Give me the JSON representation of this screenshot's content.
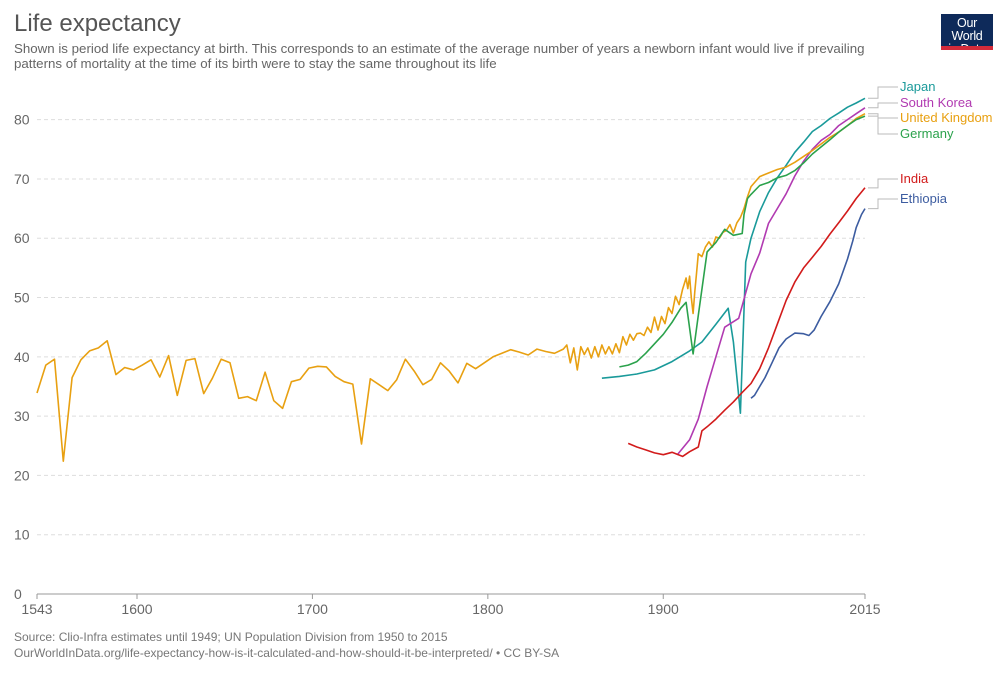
{
  "header": {
    "title": "Life expectancy",
    "subtitle": "Shown is period life expectancy at birth. This corresponds to an estimate of the average number of years a newborn infant would live if prevailing patterns of mortality at the time of its birth were to stay the same throughout its life"
  },
  "logo": {
    "line1": "Our World",
    "line2": "in Data"
  },
  "footer": {
    "source": "Source: Clio-Infra estimates until 1949; UN Population Division from 1950 to 2015",
    "url": "OurWorldInData.org/life-expectancy-how-is-it-calculated-and-how-should-it-be-interpreted/ • CC BY-SA"
  },
  "chart_data": {
    "type": "line",
    "title": "Life expectancy",
    "xlim": [
      1543,
      2015
    ],
    "ylim": [
      0,
      85
    ],
    "x_ticks": [
      1543,
      1600,
      1700,
      1800,
      1900,
      2015
    ],
    "y_ticks": [
      0,
      10,
      20,
      30,
      40,
      50,
      60,
      70,
      80
    ],
    "grid": "horizontal dashed",
    "legend": "right, end-of-line labels",
    "series": [
      {
        "name": "Japan",
        "color": "#1a9a9a",
        "label_value": 84.5,
        "points": [
          [
            1865,
            36.4
          ],
          [
            1875,
            36.7
          ],
          [
            1885,
            37.1
          ],
          [
            1895,
            37.8
          ],
          [
            1905,
            39.2
          ],
          [
            1915,
            41
          ],
          [
            1922,
            42.5
          ],
          [
            1930,
            45.5
          ],
          [
            1937,
            48.2
          ],
          [
            1940,
            42.5
          ],
          [
            1944,
            30.5
          ],
          [
            1947,
            56
          ],
          [
            1950,
            60
          ],
          [
            1955,
            64.5
          ],
          [
            1960,
            67.7
          ],
          [
            1965,
            70.2
          ],
          [
            1970,
            72.3
          ],
          [
            1975,
            74.5
          ],
          [
            1980,
            76.2
          ],
          [
            1985,
            78
          ],
          [
            1990,
            79
          ],
          [
            1995,
            80.2
          ],
          [
            2000,
            81.1
          ],
          [
            2005,
            82.1
          ],
          [
            2010,
            82.8
          ],
          [
            2015,
            83.6
          ]
        ]
      },
      {
        "name": "South Korea",
        "color": "#b13ab1",
        "label_value": 82,
        "points": [
          [
            1908,
            23.5
          ],
          [
            1915,
            26
          ],
          [
            1920,
            29.5
          ],
          [
            1925,
            35
          ],
          [
            1930,
            40
          ],
          [
            1935,
            45
          ],
          [
            1943,
            46.5
          ],
          [
            1950,
            54
          ],
          [
            1955,
            57.5
          ],
          [
            1960,
            62.5
          ],
          [
            1965,
            65
          ],
          [
            1970,
            67.5
          ],
          [
            1975,
            70.5
          ],
          [
            1980,
            73
          ],
          [
            1985,
            75
          ],
          [
            1990,
            76.5
          ],
          [
            1995,
            77.5
          ],
          [
            2000,
            79
          ],
          [
            2005,
            80
          ],
          [
            2010,
            81
          ],
          [
            2015,
            82
          ]
        ]
      },
      {
        "name": "United Kingdom",
        "color": "#e8a011",
        "label_value": 80.5,
        "points": [
          [
            1543,
            33.9
          ],
          [
            1548,
            38.6
          ],
          [
            1553,
            39.6
          ],
          [
            1558,
            22.4
          ],
          [
            1563,
            36.5
          ],
          [
            1568,
            39.5
          ],
          [
            1573,
            41
          ],
          [
            1578,
            41.5
          ],
          [
            1583,
            42.7
          ],
          [
            1588,
            37
          ],
          [
            1593,
            38.2
          ],
          [
            1598,
            37.8
          ],
          [
            1603,
            38.6
          ],
          [
            1608,
            39.5
          ],
          [
            1613,
            36.6
          ],
          [
            1618,
            40.2
          ],
          [
            1623,
            33.5
          ],
          [
            1628,
            39.4
          ],
          [
            1633,
            39.7
          ],
          [
            1638,
            33.8
          ],
          [
            1643,
            36.4
          ],
          [
            1648,
            39.6
          ],
          [
            1653,
            39
          ],
          [
            1658,
            33
          ],
          [
            1663,
            33.3
          ],
          [
            1668,
            32.6
          ],
          [
            1673,
            37.4
          ],
          [
            1678,
            32.6
          ],
          [
            1683,
            31.3
          ],
          [
            1688,
            35.8
          ],
          [
            1693,
            36.2
          ],
          [
            1698,
            38.1
          ],
          [
            1703,
            38.4
          ],
          [
            1708,
            38.3
          ],
          [
            1713,
            36.7
          ],
          [
            1718,
            35.8
          ],
          [
            1723,
            35.4
          ],
          [
            1728,
            25.3
          ],
          [
            1733,
            36.3
          ],
          [
            1738,
            35.3
          ],
          [
            1743,
            34.3
          ],
          [
            1748,
            36.1
          ],
          [
            1753,
            39.6
          ],
          [
            1758,
            37.6
          ],
          [
            1763,
            35.3
          ],
          [
            1768,
            36.2
          ],
          [
            1773,
            39
          ],
          [
            1778,
            37.6
          ],
          [
            1783,
            35.6
          ],
          [
            1788,
            38.9
          ],
          [
            1793,
            38
          ],
          [
            1798,
            39
          ],
          [
            1803,
            40
          ],
          [
            1808,
            40.6
          ],
          [
            1813,
            41.2
          ],
          [
            1818,
            40.8
          ],
          [
            1823,
            40.3
          ],
          [
            1828,
            41.3
          ],
          [
            1833,
            40.9
          ],
          [
            1838,
            40.6
          ],
          [
            1843,
            41.3
          ],
          [
            1845,
            42
          ],
          [
            1847,
            39
          ],
          [
            1849,
            41.5
          ],
          [
            1851,
            37.8
          ],
          [
            1853,
            41.7
          ],
          [
            1855,
            40.4
          ],
          [
            1857,
            41.5
          ],
          [
            1859,
            39.8
          ],
          [
            1861,
            41.7
          ],
          [
            1863,
            40
          ],
          [
            1865,
            42
          ],
          [
            1867,
            40.5
          ],
          [
            1869,
            41.7
          ],
          [
            1871,
            40.5
          ],
          [
            1873,
            42.2
          ],
          [
            1875,
            40.7
          ],
          [
            1877,
            43.4
          ],
          [
            1879,
            42
          ],
          [
            1881,
            43.8
          ],
          [
            1883,
            42.8
          ],
          [
            1885,
            43.9
          ],
          [
            1887,
            44
          ],
          [
            1889,
            43.6
          ],
          [
            1891,
            45
          ],
          [
            1893,
            44.1
          ],
          [
            1895,
            46.7
          ],
          [
            1897,
            44.5
          ],
          [
            1899,
            46.8
          ],
          [
            1901,
            45.6
          ],
          [
            1903,
            48.3
          ],
          [
            1905,
            47.3
          ],
          [
            1907,
            50.2
          ],
          [
            1909,
            48.8
          ],
          [
            1911,
            51.4
          ],
          [
            1913,
            53.3
          ],
          [
            1914,
            51.5
          ],
          [
            1915,
            53.6
          ],
          [
            1916,
            50
          ],
          [
            1917,
            47.3
          ],
          [
            1918,
            51
          ],
          [
            1919,
            54.2
          ],
          [
            1920,
            57.4
          ],
          [
            1922,
            56.9
          ],
          [
            1924,
            58.5
          ],
          [
            1926,
            59.4
          ],
          [
            1928,
            58.5
          ],
          [
            1930,
            60.2
          ],
          [
            1932,
            60
          ],
          [
            1934,
            61
          ],
          [
            1936,
            61.3
          ],
          [
            1938,
            62.3
          ],
          [
            1940,
            60.9
          ],
          [
            1942,
            62.6
          ],
          [
            1944,
            63.5
          ],
          [
            1946,
            65
          ],
          [
            1948,
            67
          ],
          [
            1950,
            68.7
          ],
          [
            1955,
            70.4
          ],
          [
            1960,
            71
          ],
          [
            1965,
            71.6
          ],
          [
            1970,
            72
          ],
          [
            1975,
            72.8
          ],
          [
            1980,
            73.8
          ],
          [
            1985,
            74.8
          ],
          [
            1990,
            75.9
          ],
          [
            1995,
            77
          ],
          [
            2000,
            77.9
          ],
          [
            2005,
            79
          ],
          [
            2010,
            80.2
          ],
          [
            2015,
            81
          ]
        ]
      },
      {
        "name": "Germany",
        "color": "#2ba24c",
        "label_value": 79,
        "points": [
          [
            1875,
            38.3
          ],
          [
            1880,
            38.6
          ],
          [
            1885,
            39.2
          ],
          [
            1890,
            40.6
          ],
          [
            1895,
            42.2
          ],
          [
            1900,
            43.8
          ],
          [
            1905,
            45.8
          ],
          [
            1910,
            48.2
          ],
          [
            1913,
            49.2
          ],
          [
            1917,
            40.5
          ],
          [
            1920,
            47
          ],
          [
            1925,
            57.7
          ],
          [
            1930,
            59.3
          ],
          [
            1935,
            61.5
          ],
          [
            1940,
            60.5
          ],
          [
            1945,
            60.8
          ],
          [
            1946,
            64
          ],
          [
            1948,
            66.7
          ],
          [
            1950,
            67.4
          ],
          [
            1955,
            68.9
          ],
          [
            1960,
            69.4
          ],
          [
            1965,
            70.2
          ],
          [
            1970,
            70.6
          ],
          [
            1975,
            71.4
          ],
          [
            1980,
            72.7
          ],
          [
            1985,
            74.2
          ],
          [
            1990,
            75.4
          ],
          [
            1995,
            76.6
          ],
          [
            2000,
            77.9
          ],
          [
            2005,
            79
          ],
          [
            2010,
            80
          ],
          [
            2015,
            80.6
          ]
        ]
      },
      {
        "name": "India",
        "color": "#d21b1b",
        "label_value": 68.5,
        "points": [
          [
            1880,
            25.4
          ],
          [
            1885,
            24.8
          ],
          [
            1890,
            24.3
          ],
          [
            1895,
            23.8
          ],
          [
            1900,
            23.5
          ],
          [
            1905,
            23.9
          ],
          [
            1911,
            23.2
          ],
          [
            1915,
            24
          ],
          [
            1920,
            24.8
          ],
          [
            1922,
            27.5
          ],
          [
            1925,
            28.2
          ],
          [
            1930,
            29.5
          ],
          [
            1935,
            31
          ],
          [
            1940,
            32.4
          ],
          [
            1945,
            34
          ],
          [
            1950,
            35.5
          ],
          [
            1955,
            38
          ],
          [
            1960,
            41.5
          ],
          [
            1965,
            45.5
          ],
          [
            1970,
            49.5
          ],
          [
            1975,
            52.6
          ],
          [
            1980,
            55
          ],
          [
            1985,
            56.8
          ],
          [
            1990,
            58.6
          ],
          [
            1995,
            60.7
          ],
          [
            2000,
            62.6
          ],
          [
            2005,
            64.6
          ],
          [
            2010,
            66.7
          ],
          [
            2015,
            68.5
          ]
        ]
      },
      {
        "name": "Ethiopia",
        "color": "#3c5ca0",
        "label_value": 65,
        "points": [
          [
            1950,
            33
          ],
          [
            1952,
            33.5
          ],
          [
            1955,
            35
          ],
          [
            1958,
            36.5
          ],
          [
            1962,
            39
          ],
          [
            1966,
            41.5
          ],
          [
            1970,
            43
          ],
          [
            1975,
            44
          ],
          [
            1980,
            43.9
          ],
          [
            1983,
            43.6
          ],
          [
            1986,
            44.5
          ],
          [
            1990,
            46.8
          ],
          [
            1995,
            49.3
          ],
          [
            2000,
            52.3
          ],
          [
            2005,
            56.5
          ],
          [
            2008,
            59.5
          ],
          [
            2010,
            61.8
          ],
          [
            2013,
            64
          ],
          [
            2015,
            65
          ]
        ]
      }
    ]
  }
}
